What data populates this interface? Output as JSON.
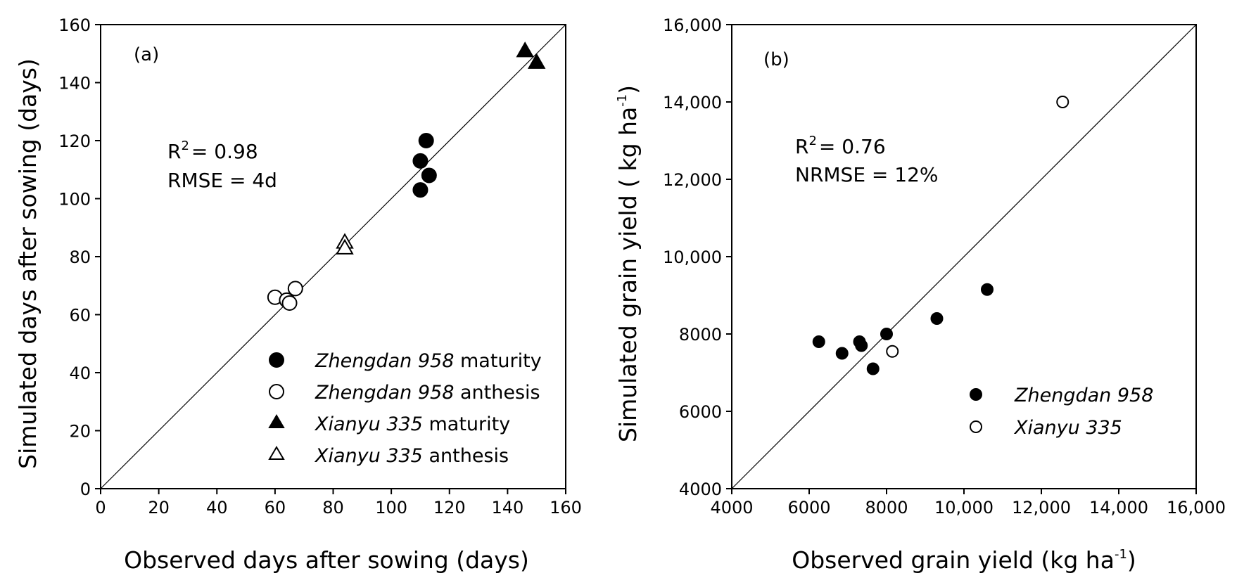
{
  "chart_data": [
    {
      "type": "scatter",
      "panel_label": "(a)",
      "xlabel": "Observed days after sowing (days)",
      "ylabel": "Simulated days after sowing (days)",
      "xlim": [
        0,
        160
      ],
      "ylim": [
        0,
        160
      ],
      "xticks": [
        0,
        20,
        40,
        60,
        80,
        100,
        120,
        140,
        160
      ],
      "yticks": [
        0,
        20,
        40,
        60,
        80,
        100,
        120,
        140,
        160
      ],
      "xtick_labels": [
        "0",
        "20",
        "40",
        "60",
        "80",
        "100",
        "120",
        "140",
        "160"
      ],
      "ytick_labels": [
        "0",
        "20",
        "40",
        "60",
        "80",
        "100",
        "120",
        "140",
        "160"
      ],
      "reference_line": "1:1",
      "stats": {
        "r2_prefix": "R",
        "r2_sup": "2",
        "r2_value": "= 0.98",
        "error": "RMSE = 4d"
      },
      "legend_position": "bottom-right",
      "series": [
        {
          "name": "Zhengdan 958",
          "suffix": "maturity",
          "marker": "circle",
          "filled": true,
          "x": [
            110,
            110,
            112,
            113
          ],
          "y": [
            113,
            103,
            120,
            108
          ]
        },
        {
          "name": "Zhengdan 958",
          "suffix": "anthesis",
          "marker": "circle",
          "filled": false,
          "x": [
            60,
            64,
            65,
            67
          ],
          "y": [
            66,
            65,
            64,
            69
          ]
        },
        {
          "name": "Xianyu 335",
          "suffix": "maturity",
          "marker": "triangle",
          "filled": true,
          "x": [
            146,
            150
          ],
          "y": [
            151,
            147
          ]
        },
        {
          "name": "Xianyu 335",
          "suffix": "anthesis",
          "marker": "triangle",
          "filled": false,
          "x": [
            84,
            84
          ],
          "y": [
            85,
            83
          ]
        }
      ]
    },
    {
      "type": "scatter",
      "panel_label": "(b)",
      "xlabel_main": "Observed grain yield  (kg ha",
      "xlabel_sup": "-1",
      "xlabel_end": ")",
      "ylabel_main": "Simulated grain yield ( kg ha",
      "ylabel_sup": "-1",
      "ylabel_end": ")",
      "xlim": [
        4000,
        16000
      ],
      "ylim": [
        4000,
        16000
      ],
      "xticks": [
        4000,
        6000,
        8000,
        10000,
        12000,
        14000,
        16000
      ],
      "yticks": [
        4000,
        6000,
        8000,
        10000,
        12000,
        14000,
        16000
      ],
      "xtick_labels": [
        "4000",
        "6000",
        "8000",
        "10,000",
        "12,000",
        "14,000",
        "16,000"
      ],
      "ytick_labels": [
        "4000",
        "6000",
        "8000",
        "10,000",
        "12,000",
        "14,000",
        "16,000"
      ],
      "reference_line": "1:1",
      "stats": {
        "r2_prefix": "R",
        "r2_sup": "2",
        "r2_value": "= 0.76",
        "error": "NRMSE = 12%"
      },
      "legend_position": "bottom-right",
      "series": [
        {
          "name": "Zhengdan 958",
          "marker": "circle",
          "filled": true,
          "x": [
            6250,
            6850,
            7300,
            7350,
            7650,
            8000,
            9300,
            10600
          ],
          "y": [
            7800,
            7500,
            7800,
            7700,
            7100,
            8000,
            8400,
            9150
          ]
        },
        {
          "name": "Xianyu 335",
          "marker": "circle",
          "filled": false,
          "x": [
            8150,
            12550
          ],
          "y": [
            7550,
            14000
          ]
        }
      ]
    }
  ]
}
